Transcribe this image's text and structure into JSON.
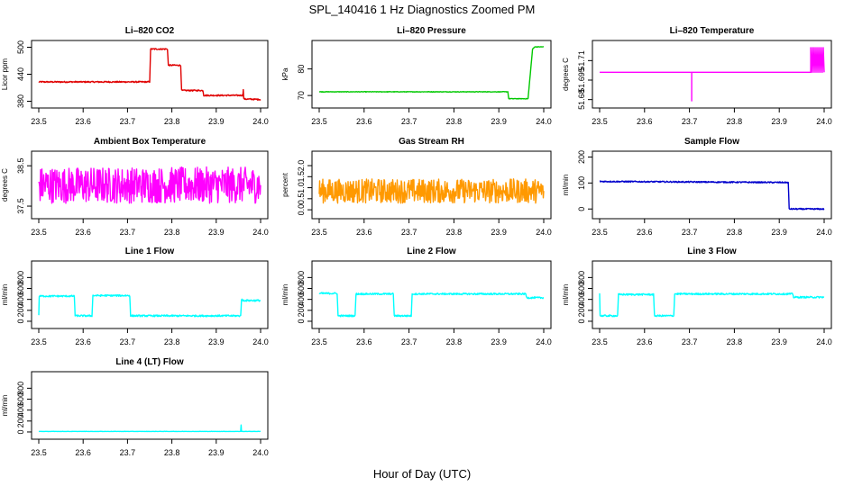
{
  "title": "SPL_140416  1 Hz Diagnostics Zoomed PM",
  "xlabel": "Hour of Day (UTC)",
  "colors": {
    "red": "#e00000",
    "green": "#00c800",
    "magenta": "#ff00ff",
    "orange": "#ff9900",
    "blue": "#0000cc",
    "cyan": "#00ffff"
  },
  "chart_data": [
    {
      "type": "line",
      "title": "Li–820 CO2",
      "ylabel": "Licor ppm",
      "color": "#e00000",
      "xlim": [
        23.5,
        24.0
      ],
      "ylim": [
        375,
        505
      ],
      "xticks": [
        23.5,
        23.6,
        23.7,
        23.8,
        23.9,
        24.0
      ],
      "xtick_labels": [
        "23.5",
        "23.6",
        "23.7",
        "23.8",
        "23.9",
        "24.0"
      ],
      "yticks": [
        380,
        440,
        500
      ],
      "ytick_labels": [
        "380",
        "440",
        "500"
      ],
      "noise": 1.5,
      "x": [
        23.5,
        23.75,
        23.752,
        23.79,
        23.792,
        23.82,
        23.822,
        23.87,
        23.872,
        23.96,
        23.961,
        23.962,
        23.963,
        24.0
      ],
      "y": [
        423,
        423,
        496,
        496,
        460,
        460,
        404,
        404,
        393,
        393,
        405,
        387,
        385,
        384
      ]
    },
    {
      "type": "line",
      "title": "Li–820 Pressure",
      "ylabel": "kPa",
      "color": "#00c800",
      "xlim": [
        23.5,
        24.0
      ],
      "ylim": [
        67,
        89
      ],
      "xticks": [
        23.5,
        23.6,
        23.7,
        23.8,
        23.9,
        24.0
      ],
      "xtick_labels": [
        "23.5",
        "23.6",
        "23.7",
        "23.8",
        "23.9",
        "24.0"
      ],
      "yticks": [
        70,
        80
      ],
      "ytick_labels": [
        "70",
        "80"
      ],
      "noise": 0.1,
      "x": [
        23.5,
        23.92,
        23.922,
        23.965,
        23.975,
        23.98,
        24.0
      ],
      "y": [
        71.4,
        71.4,
        68.8,
        68.8,
        87.4,
        88.3,
        88.3
      ]
    },
    {
      "type": "line",
      "title": "Li–820 Temperature",
      "ylabel": "degrees C",
      "color": "#ff00ff",
      "xlim": [
        23.5,
        24.0
      ],
      "ylim": [
        51.677,
        51.722
      ],
      "xticks": [
        23.5,
        23.6,
        23.7,
        23.8,
        23.9,
        24.0
      ],
      "xtick_labels": [
        "23.5",
        "23.6",
        "23.7",
        "23.8",
        "23.9",
        "24.0"
      ],
      "yticks": [
        51.68,
        51.695,
        51.71
      ],
      "ytick_labels": [
        "51.68",
        "51.695",
        "51.71"
      ],
      "noise": 0,
      "x": [
        23.5,
        23.705,
        23.705,
        23.705,
        23.97,
        23.97,
        23.972,
        23.974,
        23.976,
        23.978,
        23.98,
        23.982,
        23.984,
        23.986,
        23.988,
        23.99,
        23.992,
        23.994,
        23.996,
        23.998,
        24.0
      ],
      "y": [
        51.701,
        51.701,
        51.679,
        51.701,
        51.701,
        51.72,
        51.701,
        51.72,
        51.701,
        51.72,
        51.701,
        51.72,
        51.701,
        51.72,
        51.701,
        51.72,
        51.701,
        51.72,
        51.701,
        51.72,
        51.701
      ]
    },
    {
      "type": "line",
      "title": "Ambient Box Temperature",
      "ylabel": "degrees C",
      "color": "#ff00ff",
      "xlim": [
        23.5,
        24.0
      ],
      "ylim": [
        37.3,
        38.75
      ],
      "xticks": [
        23.5,
        23.6,
        23.7,
        23.8,
        23.9,
        24.0
      ],
      "xtick_labels": [
        "23.5",
        "23.6",
        "23.7",
        "23.8",
        "23.9",
        "24.0"
      ],
      "yticks": [
        37.5,
        38.5
      ],
      "ytick_labels": [
        "37.5",
        "38.5"
      ],
      "noise": 0.45,
      "x": [
        23.5,
        24.0
      ],
      "y": [
        38.02,
        38.02
      ]
    },
    {
      "type": "line",
      "title": "Gas Stream RH",
      "ylabel": "percent",
      "color": "#ff9900",
      "xlim": [
        23.5,
        24.0
      ],
      "ylim": [
        -0.2,
        2.45
      ],
      "xticks": [
        23.5,
        23.6,
        23.7,
        23.8,
        23.9,
        24.0
      ],
      "xtick_labels": [
        "23.5",
        "23.6",
        "23.7",
        "23.8",
        "23.9",
        "24.0"
      ],
      "yticks": [
        0.0,
        0.5,
        1.0,
        1.5,
        2.0
      ],
      "ytick_labels": [
        "0.0",
        "0.5",
        "1.0",
        "1.5",
        "2.0"
      ],
      "noise": 0.55,
      "x": [
        23.5,
        24.0
      ],
      "y": [
        0.85,
        0.85
      ]
    },
    {
      "type": "line",
      "title": "Sample Flow",
      "ylabel": "ml/min",
      "color": "#0000cc",
      "xlim": [
        23.5,
        24.0
      ],
      "ylim": [
        -20,
        205
      ],
      "xticks": [
        23.5,
        23.6,
        23.7,
        23.8,
        23.9,
        24.0
      ],
      "xtick_labels": [
        "23.5",
        "23.6",
        "23.7",
        "23.8",
        "23.9",
        "24.0"
      ],
      "yticks": [
        0,
        100,
        200
      ],
      "ytick_labels": [
        "0",
        "100",
        "200"
      ],
      "noise": 2.5,
      "x": [
        23.5,
        23.92,
        23.922,
        24.0
      ],
      "y": [
        106,
        102,
        0,
        0
      ]
    },
    {
      "type": "line",
      "title": "Line 1 Flow",
      "ylabel": "ml/min",
      "color": "#00ffff",
      "xlim": [
        23.5,
        24.0
      ],
      "ylim": [
        -50,
        1020
      ],
      "xticks": [
        23.5,
        23.6,
        23.7,
        23.8,
        23.9,
        24.0
      ],
      "xtick_labels": [
        "23.5",
        "23.6",
        "23.7",
        "23.8",
        "23.9",
        "24.0"
      ],
      "yticks": [
        0,
        200,
        400,
        600,
        800
      ],
      "ytick_labels": [
        "0",
        "200",
        "400",
        "600",
        "800"
      ],
      "noise": 15,
      "x": [
        23.5,
        23.501,
        23.58,
        23.582,
        23.62,
        23.622,
        23.705,
        23.707,
        23.955,
        23.957,
        23.96,
        24.0
      ],
      "y": [
        100,
        460,
        460,
        100,
        100,
        470,
        470,
        100,
        100,
        400,
        380,
        380
      ]
    },
    {
      "type": "line",
      "title": "Line 2 Flow",
      "ylabel": "ml/min",
      "color": "#00ffff",
      "xlim": [
        23.5,
        24.0
      ],
      "ylim": [
        -50,
        1020
      ],
      "xticks": [
        23.5,
        23.6,
        23.7,
        23.8,
        23.9,
        24.0
      ],
      "xtick_labels": [
        "23.5",
        "23.6",
        "23.7",
        "23.8",
        "23.9",
        "24.0"
      ],
      "yticks": [
        0,
        200,
        400,
        600,
        800
      ],
      "ytick_labels": [
        "0",
        "200",
        "400",
        "600",
        "800"
      ],
      "noise": 15,
      "x": [
        23.5,
        23.54,
        23.542,
        23.58,
        23.582,
        23.665,
        23.667,
        23.705,
        23.707,
        23.96,
        23.962,
        24.0
      ],
      "y": [
        510,
        510,
        100,
        100,
        500,
        500,
        100,
        100,
        500,
        500,
        430,
        430
      ]
    },
    {
      "type": "line",
      "title": "Line 3 Flow",
      "ylabel": "ml/min",
      "color": "#00ffff",
      "xlim": [
        23.5,
        24.0
      ],
      "ylim": [
        -50,
        1020
      ],
      "xticks": [
        23.5,
        23.6,
        23.7,
        23.8,
        23.9,
        24.0
      ],
      "xtick_labels": [
        "23.5",
        "23.6",
        "23.7",
        "23.8",
        "23.9",
        "24.0"
      ],
      "yticks": [
        0,
        200,
        400,
        600,
        800
      ],
      "ytick_labels": [
        "0",
        "200",
        "400",
        "600",
        "800"
      ],
      "noise": 15,
      "x": [
        23.5,
        23.5,
        23.501,
        23.54,
        23.542,
        23.62,
        23.622,
        23.665,
        23.667,
        23.93,
        23.932,
        24.0
      ],
      "y": [
        500,
        500,
        100,
        100,
        490,
        490,
        100,
        100,
        500,
        500,
        440,
        440
      ]
    },
    {
      "type": "line",
      "title": "Line 4 (LT) Flow",
      "ylabel": "ml/min",
      "color": "#00ffff",
      "xlim": [
        23.5,
        24.0
      ],
      "ylim": [
        -50,
        1020
      ],
      "xticks": [
        23.5,
        23.6,
        23.7,
        23.8,
        23.9,
        24.0
      ],
      "xtick_labels": [
        "23.5",
        "23.6",
        "23.7",
        "23.8",
        "23.9",
        "24.0"
      ],
      "yticks": [
        0,
        200,
        400,
        600,
        800
      ],
      "ytick_labels": [
        "0",
        "200",
        "400",
        "600",
        "800"
      ],
      "noise": 2,
      "x": [
        23.5,
        23.955,
        23.956,
        23.957,
        23.958,
        24.0
      ],
      "y": [
        10,
        10,
        130,
        10,
        10,
        10
      ]
    }
  ]
}
